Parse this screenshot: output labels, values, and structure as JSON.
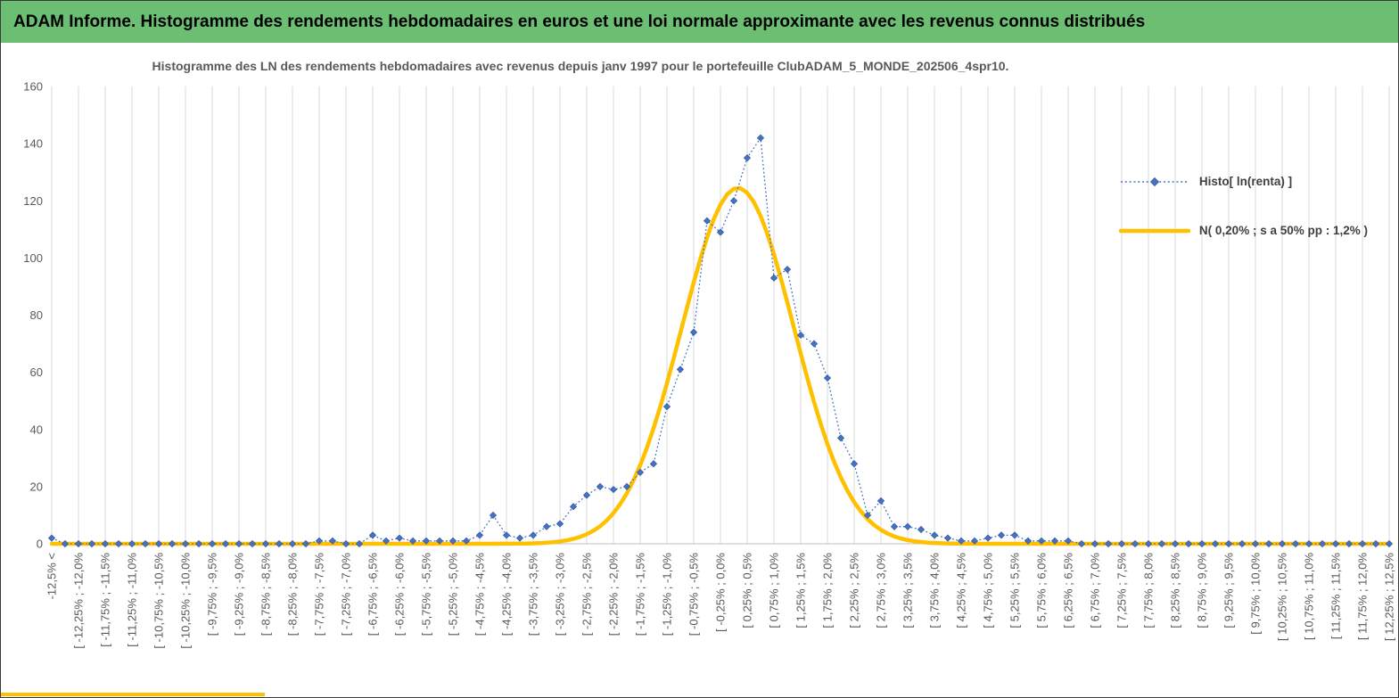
{
  "header": {
    "title": "ADAM Informe. Histogramme des rendements hebdomadaires en euros et une loi normale approximante avec les revenus connus distribués",
    "bg_color": "#6CBE73",
    "accent_color": "#FFC000"
  },
  "chart": {
    "title": "Histogramme des LN des rendements hebdomadaires avec revenus depuis janv 1997 pour le portefeuille ClubADAM_5_MONDE_202506_4spr10.",
    "legend": [
      {
        "label": "Histo[ ln(renta) ]",
        "type": "dotted-diamond",
        "color": "#4472C4"
      },
      {
        "label": "N( 0,20% ; s a 50% pp : 1,2% )",
        "type": "line",
        "color": "#FFC000"
      }
    ]
  },
  "chart_data": {
    "type": "line",
    "title": "Histogramme des LN des rendements hebdomadaires avec revenus depuis janv 1997 pour le portefeuille ClubADAM_5_MONDE_202506_4spr10.",
    "ylim": [
      0,
      160
    ],
    "yticks": [
      0,
      20,
      40,
      60,
      80,
      100,
      120,
      140,
      160
    ],
    "grid": "vertical-only",
    "legend_position": "right-inside",
    "bins": {
      "start_pct": -12.5,
      "step_pct": 0.25,
      "count": 101
    },
    "label_every": 2,
    "x_labels": [
      "-12,5% <",
      "[ -12,25% ; -12,0%",
      "[ -11,75% ; -11,5%",
      "[ -11,25% ; -11,0%",
      "[ -10,75% ; -10,5%",
      "[ -10,25% ; -10,0%",
      "[ -9,75% ; -9,5%",
      "[ -9,25% ; -9,0%",
      "[ -8,75% ; -8,5%",
      "[ -8,25% ; -8,0%",
      "[ -7,75% ; -7,5%",
      "[ -7,25% ; -7,0%",
      "[ -6,75% ; -6,5%",
      "[ -6,25% ; -6,0%",
      "[ -5,75% ; -5,5%",
      "[ -5,25% ; -5,0%",
      "[ -4,75% ; -4,5%",
      "[ -4,25% ; -4,0%",
      "[ -3,75% ; -3,5%",
      "[ -3,25% ; -3,0%",
      "[ -2,75% ; -2,5%",
      "[ -2,25% ; -2,0%",
      "[ -1,75% ; -1,5%",
      "[ -1,25% ; -1,0%",
      "[ -0,75% ; -0,5%",
      "[ -0,25% ; 0,0%",
      "[ 0,25% ; 0,5%",
      "[ 0,75% ; 1,0%",
      "[ 1,25% ; 1,5%",
      "[ 1,75% ; 2,0%",
      "[ 2,25% ; 2,5%",
      "[ 2,75% ; 3,0%",
      "[ 3,25% ; 3,5%",
      "[ 3,75% ; 4,0%",
      "[ 4,25% ; 4,5%",
      "[ 4,75% ; 5,0%",
      "[ 5,25% ; 5,5%",
      "[ 5,75% ; 6,0%",
      "[ 6,25% ; 6,5%",
      "[ 6,75% ; 7,0%",
      "[ 7,25% ; 7,5%",
      "[ 7,75% ; 8,0%",
      "[ 8,25% ; 8,5%",
      "[ 8,75% ; 9,0%",
      "[ 9,25% ; 9,5%",
      "[ 9,75% ; 10,0%",
      "[ 10,25% ; 10,5%",
      "[ 10,75% ; 11,0%",
      "[ 11,25% ; 11,5%",
      "[ 11,75% ; 12,0%",
      "[ 12,25% ; 12,5%"
    ],
    "series": [
      {
        "name": "Histo[ ln(renta) ]",
        "style": "dotted-line-diamond-markers",
        "color": "#4472C4",
        "values": [
          2,
          0,
          0,
          0,
          0,
          0,
          0,
          0,
          0,
          0,
          0,
          0,
          0,
          0,
          0,
          0,
          0,
          0,
          0,
          0,
          1,
          1,
          0,
          0,
          3,
          1,
          2,
          1,
          1,
          1,
          1,
          1,
          3,
          10,
          3,
          2,
          3,
          6,
          7,
          13,
          17,
          20,
          19,
          20,
          25,
          28,
          48,
          61,
          74,
          113,
          109,
          120,
          135,
          142,
          93,
          96,
          73,
          70,
          58,
          37,
          28,
          10,
          15,
          6,
          6,
          5,
          3,
          2,
          1,
          1,
          2,
          3,
          3,
          1,
          1,
          1,
          1,
          0,
          0,
          0,
          0,
          0,
          0,
          0,
          0,
          0,
          0,
          0,
          0,
          0,
          0,
          0,
          0,
          0,
          0,
          0,
          0,
          0,
          0,
          0,
          0
        ]
      },
      {
        "name": "N( 0,20% ; s a 50% pp : 1,2% )",
        "style": "smooth-curve",
        "color": "#FFC000",
        "mean_pct": 0.2,
        "sd_pct": 1.05,
        "peak": 124.5
      }
    ]
  }
}
